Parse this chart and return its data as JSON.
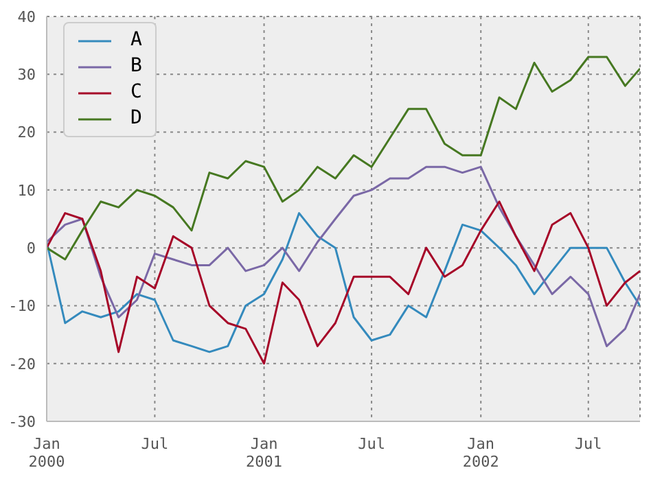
{
  "chart_data": {
    "type": "line",
    "x": [
      "2000-01-01",
      "2000-02-01",
      "2000-03-01",
      "2000-04-01",
      "2000-05-01",
      "2000-06-01",
      "2000-07-01",
      "2000-08-01",
      "2000-09-01",
      "2000-10-01",
      "2000-11-01",
      "2000-12-01",
      "2001-01-01",
      "2001-02-01",
      "2001-03-01",
      "2001-04-01",
      "2001-05-01",
      "2001-06-01",
      "2001-07-01",
      "2001-08-01",
      "2001-09-01",
      "2001-10-01",
      "2001-11-01",
      "2001-12-01",
      "2002-01-01",
      "2002-02-01",
      "2002-03-01",
      "2002-04-01",
      "2002-05-01",
      "2002-06-01",
      "2002-07-01",
      "2002-08-01",
      "2002-09-01",
      "2002-09-26"
    ],
    "series": [
      {
        "name": "A",
        "color": "#348abd",
        "values": [
          1,
          -13,
          -11,
          -12,
          -11,
          -8,
          -9,
          -16,
          -17,
          -18,
          -17,
          -10,
          -8,
          -2,
          6,
          2,
          0,
          -12,
          -16,
          -15,
          -10,
          -12,
          -4,
          4,
          3,
          0,
          -3,
          -8,
          -4,
          0,
          0,
          0,
          -6,
          -10
        ]
      },
      {
        "name": "B",
        "color": "#7a68a6",
        "values": [
          1,
          4,
          5,
          -5,
          -12,
          -9,
          -1,
          -2,
          -3,
          -3,
          0,
          -4,
          -3,
          0,
          -4,
          1,
          5,
          9,
          10,
          12,
          12,
          14,
          14,
          13,
          14,
          7,
          2,
          -3,
          -8,
          -5,
          -8,
          -17,
          -14,
          -8
        ]
      },
      {
        "name": "C",
        "color": "#a60628",
        "values": [
          0,
          6,
          5,
          -4,
          -18,
          -5,
          -7,
          2,
          0,
          -10,
          -13,
          -14,
          -20,
          -6,
          -9,
          -17,
          -13,
          -5,
          -5,
          -5,
          -8,
          0,
          -5,
          -3,
          3,
          8,
          2,
          -4,
          4,
          6,
          0,
          -10,
          -6,
          -4
        ]
      },
      {
        "name": "D",
        "color": "#467821",
        "values": [
          0,
          -2,
          3,
          8,
          7,
          10,
          9,
          7,
          3,
          13,
          12,
          15,
          14,
          8,
          10,
          14,
          12,
          16,
          14,
          19,
          24,
          24,
          18,
          16,
          16,
          26,
          24,
          32,
          27,
          29,
          33,
          33,
          28,
          31
        ]
      }
    ],
    "xlim": [
      "2000-01-01",
      "2002-09-26"
    ],
    "xticks": [
      {
        "value": "2000-01-01",
        "label": "Jan\n2000"
      },
      {
        "value": "2000-07-01",
        "label": "Jul"
      },
      {
        "value": "2001-01-01",
        "label": "Jan\n2001"
      },
      {
        "value": "2001-07-01",
        "label": "Jul"
      },
      {
        "value": "2002-01-01",
        "label": "Jan\n2002"
      },
      {
        "value": "2002-07-01",
        "label": "Jul"
      }
    ],
    "ylim": [
      -30,
      40
    ],
    "yticks": [
      -30,
      -20,
      -10,
      0,
      10,
      20,
      30,
      40
    ],
    "grid": true,
    "legend": "top left",
    "line_style": "solid",
    "marker": "none"
  }
}
